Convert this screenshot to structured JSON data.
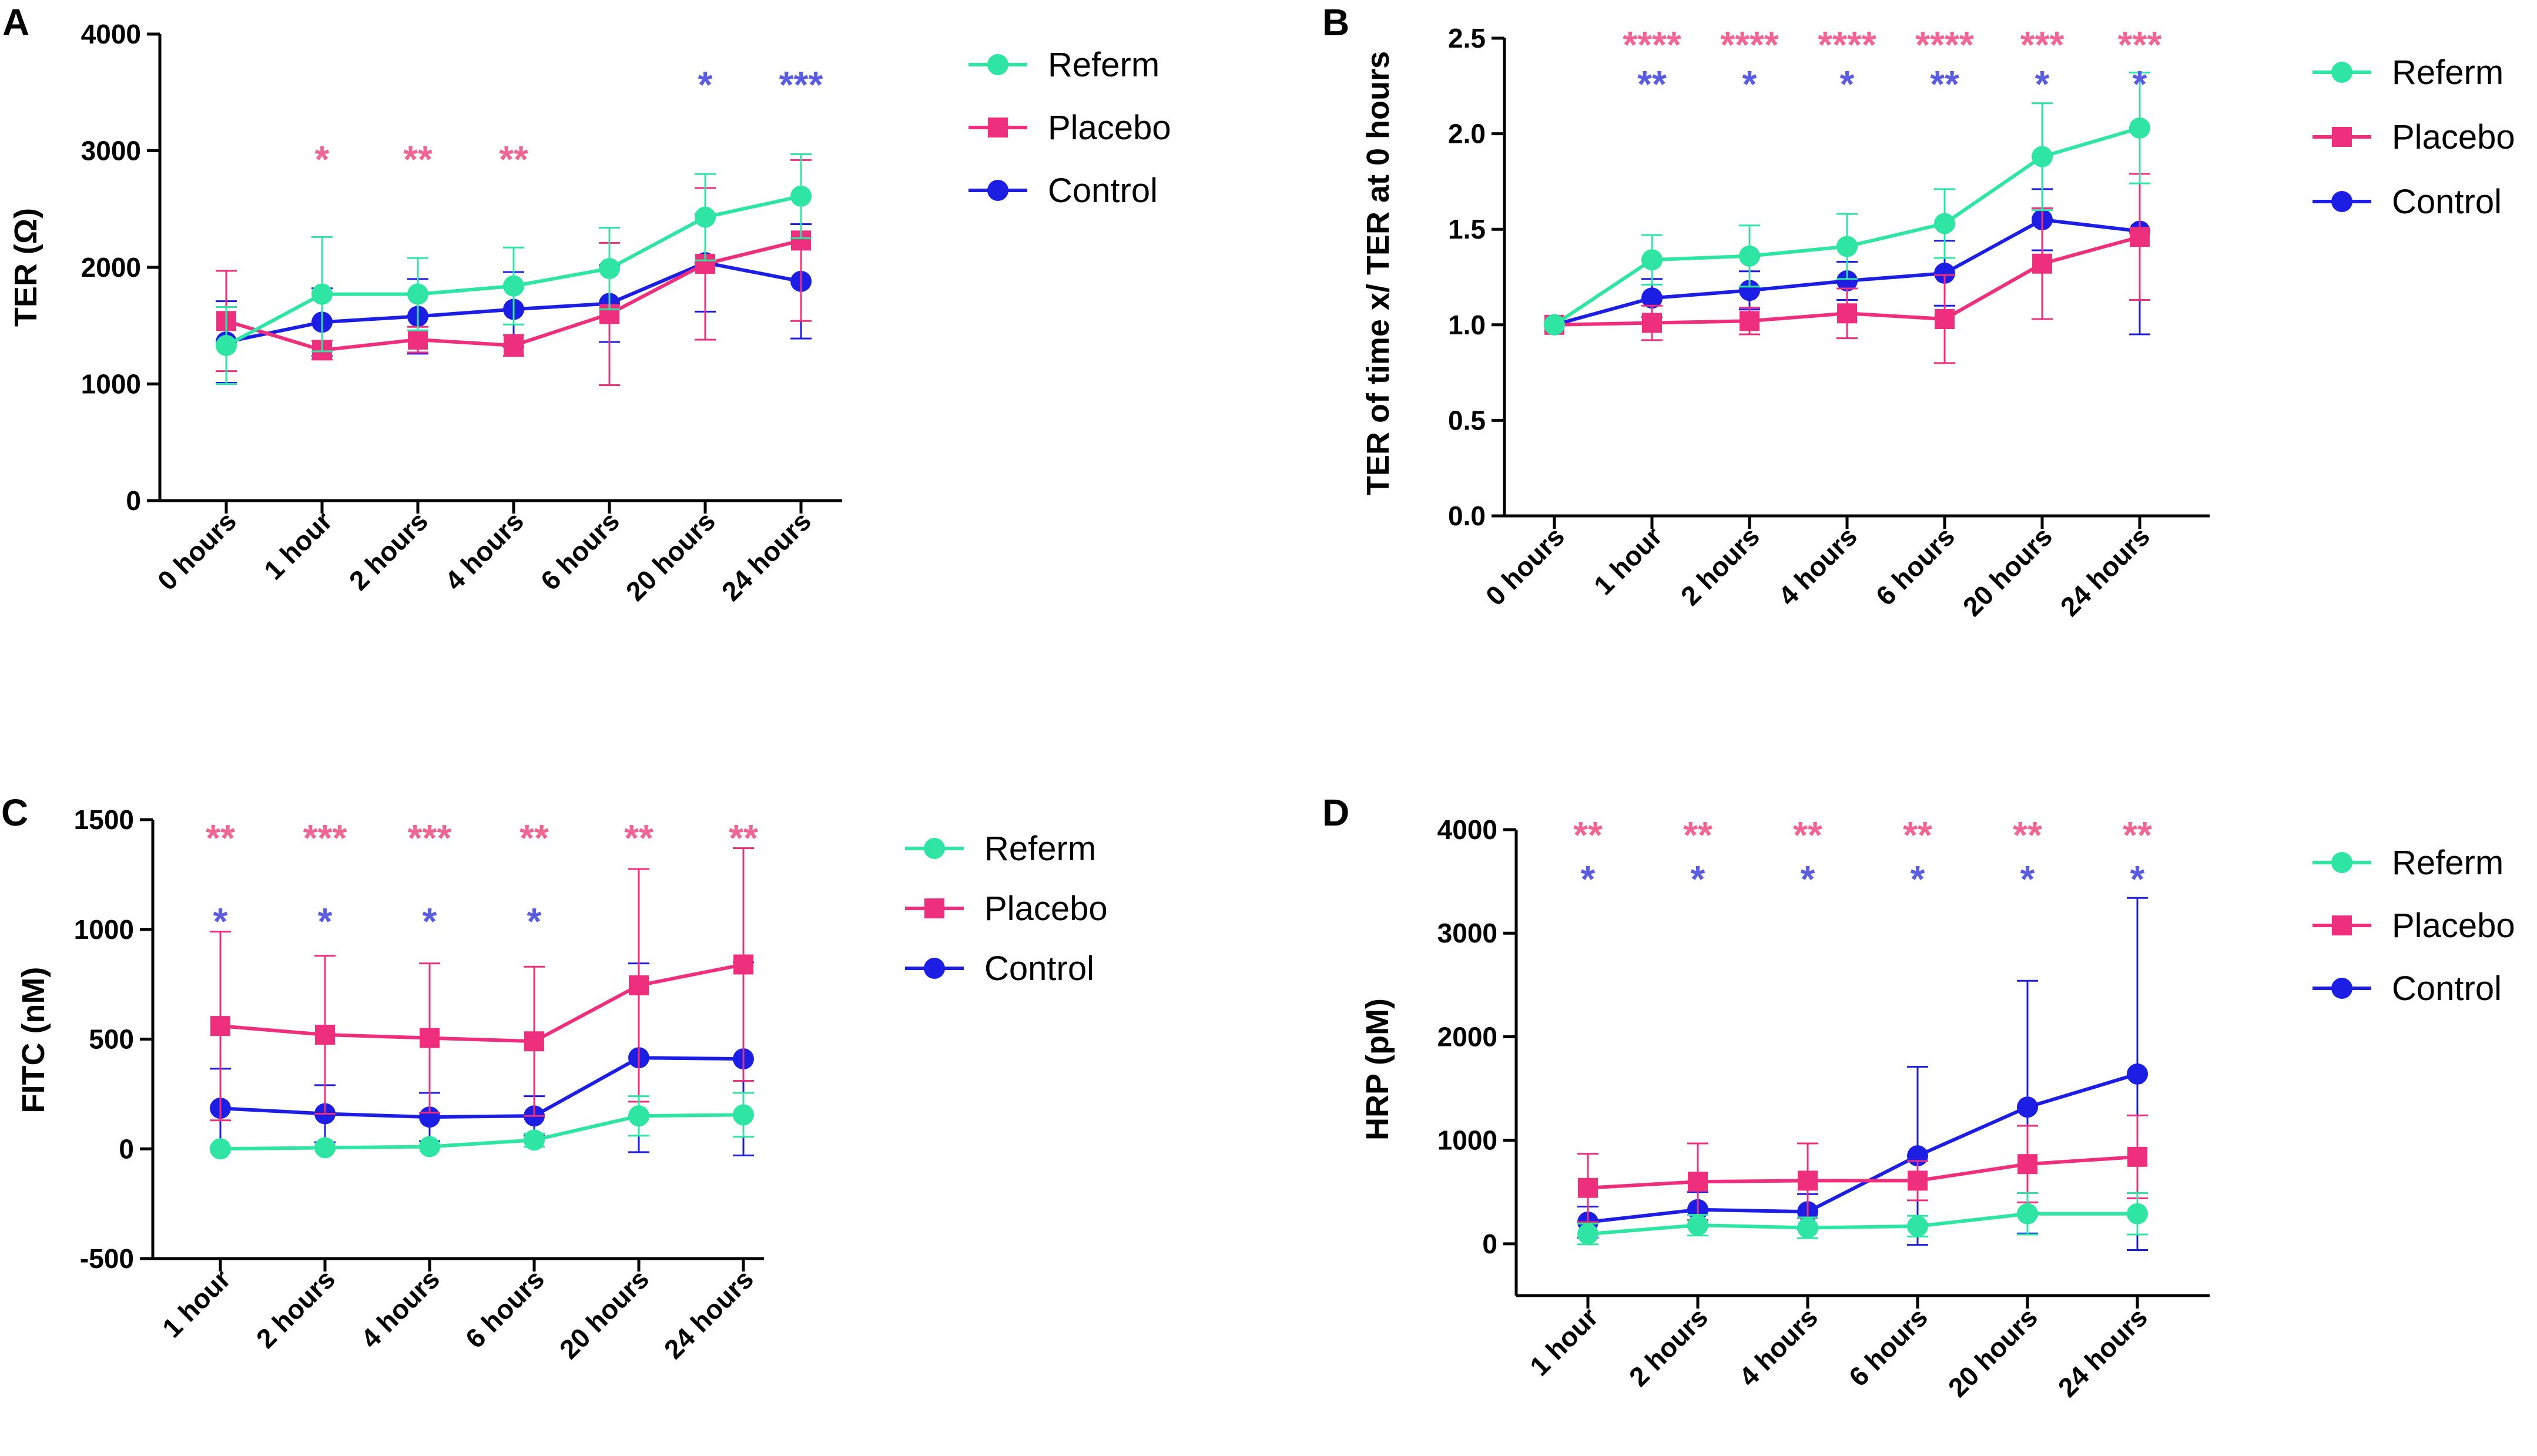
{
  "chart_data": [
    {
      "panel": "A",
      "type": "line",
      "ylabel": "TER (Ω)",
      "xlabel": "",
      "categories": [
        "0 hours",
        "1 hour",
        "2 hours",
        "4 hours",
        "6 hours",
        "20 hours",
        "24 hours"
      ],
      "ylim": [
        0,
        4000
      ],
      "yticks": [
        "0",
        "1000",
        "2000",
        "3000",
        "4000"
      ],
      "yticks_values": [
        0,
        1000,
        2000,
        3000,
        4000
      ],
      "series": [
        {
          "name": "Referm",
          "color": "#2ee5a3",
          "marker": "circle",
          "values": [
            1330,
            1770,
            1770,
            1840,
            1990,
            2430,
            2610
          ],
          "errors": [
            330,
            490,
            310,
            330,
            350,
            370,
            360
          ]
        },
        {
          "name": "Placebo",
          "color": "#ee2f7d",
          "marker": "square",
          "values": [
            1540,
            1290,
            1380,
            1330,
            1600,
            2030,
            2230
          ],
          "errors": [
            430,
            80,
            110,
            90,
            610,
            650,
            690
          ]
        },
        {
          "name": "Control",
          "color": "#1c1ee4",
          "marker": "circle",
          "values": [
            1360,
            1530,
            1580,
            1640,
            1690,
            2040,
            1880
          ],
          "errors": [
            350,
            290,
            320,
            320,
            330,
            420,
            490
          ]
        }
      ],
      "significance_top": [
        "",
        "*",
        "**",
        "**",
        "",
        "*",
        "***"
      ],
      "significance_top_color": "#f06592",
      "significance_top_overrides": {
        "5": "#5b5de0",
        "6": "#5b5de0"
      },
      "significance_bottom": [],
      "significance_bottom_color": "#5b5de0"
    },
    {
      "panel": "B",
      "type": "line",
      "ylabel": "TER of time x/ TER at 0 hours",
      "xlabel": "",
      "categories": [
        "0 hours",
        "1 hour",
        "2 hours",
        "4 hours",
        "6 hours",
        "20 hours",
        "24 hours"
      ],
      "ylim": [
        0,
        2.5
      ],
      "yticks": [
        "0.0",
        "0.5",
        "1.0",
        "1.5",
        "2.0",
        "2.5"
      ],
      "yticks_values": [
        0,
        0.5,
        1.0,
        1.5,
        2.0,
        2.5
      ],
      "series": [
        {
          "name": "Referm",
          "color": "#2ee5a3",
          "marker": "circle",
          "values": [
            1.0,
            1.34,
            1.36,
            1.41,
            1.53,
            1.88,
            2.03
          ],
          "errors": [
            0,
            0.13,
            0.16,
            0.17,
            0.18,
            0.28,
            0.29
          ]
        },
        {
          "name": "Placebo",
          "color": "#ee2f7d",
          "marker": "square",
          "values": [
            1.0,
            1.01,
            1.02,
            1.06,
            1.03,
            1.32,
            1.46
          ],
          "errors": [
            0,
            0.09,
            0.07,
            0.13,
            0.23,
            0.29,
            0.33
          ]
        },
        {
          "name": "Control",
          "color": "#1c1ee4",
          "marker": "circle",
          "values": [
            1.0,
            1.14,
            1.18,
            1.23,
            1.27,
            1.55,
            1.49
          ],
          "errors": [
            0,
            0.1,
            0.1,
            0.1,
            0.17,
            0.16,
            0.54
          ]
        }
      ],
      "significance_top": [
        "",
        "****",
        "****",
        "****",
        "****",
        "***",
        "***"
      ],
      "significance_top_color": "#f06592",
      "significance_bottom": [
        "",
        "**",
        "*",
        "*",
        "**",
        "*",
        "*"
      ],
      "significance_bottom_color": "#5b5de0"
    },
    {
      "panel": "C",
      "type": "line",
      "ylabel": "FITC (nM)",
      "xlabel": "",
      "categories": [
        "1 hour",
        "2 hours",
        "4 hours",
        "6 hours",
        "20 hours",
        "24 hours"
      ],
      "ylim": [
        -500,
        1500
      ],
      "yticks": [
        "-500",
        "0",
        "500",
        "1000",
        "1500"
      ],
      "yticks_values": [
        -500,
        0,
        500,
        1000,
        1500
      ],
      "series": [
        {
          "name": "Referm",
          "color": "#2ee5a3",
          "marker": "circle",
          "values": [
            0,
            5,
            10,
            40,
            150,
            155
          ],
          "errors": [
            0,
            0,
            5,
            30,
            90,
            100
          ]
        },
        {
          "name": "Placebo",
          "color": "#ee2f7d",
          "marker": "square",
          "values": [
            560,
            520,
            505,
            490,
            745,
            840
          ],
          "errors": [
            430,
            360,
            340,
            340,
            530,
            530
          ]
        },
        {
          "name": "Control",
          "color": "#1c1ee4",
          "marker": "circle",
          "values": [
            185,
            160,
            145,
            150,
            415,
            410
          ],
          "errors": [
            180,
            130,
            110,
            90,
            430,
            440
          ]
        }
      ],
      "significance_top": [
        "**",
        "***",
        "***",
        "**",
        "**",
        "**"
      ],
      "significance_top_color": "#f06592",
      "significance_bottom": [
        "*",
        "*",
        "*",
        "*",
        "",
        ""
      ],
      "significance_bottom_color": "#5b5de0"
    },
    {
      "panel": "D",
      "type": "line",
      "ylabel": "HRP (pM)",
      "xlabel": "",
      "categories": [
        "1 hour",
        "2 hours",
        "4 hours",
        "6 hours",
        "20 hours",
        "24 hours"
      ],
      "ylim": [
        -500,
        4000
      ],
      "yticks": [
        "0",
        "1000",
        "2000",
        "3000",
        "4000"
      ],
      "yticks_values": [
        0,
        1000,
        2000,
        3000,
        4000
      ],
      "series": [
        {
          "name": "Referm",
          "color": "#2ee5a3",
          "marker": "circle",
          "values": [
            95,
            180,
            155,
            170,
            290,
            290
          ],
          "errors": [
            100,
            100,
            100,
            100,
            200,
            200
          ]
        },
        {
          "name": "Placebo",
          "color": "#ee2f7d",
          "marker": "square",
          "values": [
            540,
            600,
            610,
            610,
            770,
            840
          ],
          "errors": [
            330,
            370,
            360,
            190,
            370,
            400
          ]
        },
        {
          "name": "Control",
          "color": "#1c1ee4",
          "marker": "circle",
          "values": [
            210,
            330,
            310,
            850,
            1320,
            1640
          ],
          "errors": [
            150,
            170,
            170,
            860,
            1220,
            1700
          ]
        }
      ],
      "significance_top": [
        "**",
        "**",
        "**",
        "**",
        "**",
        "**"
      ],
      "significance_top_color": "#f06592",
      "significance_bottom": [
        "*",
        "*",
        "*",
        "*",
        "*",
        "*"
      ],
      "significance_bottom_color": "#5b5de0"
    }
  ]
}
